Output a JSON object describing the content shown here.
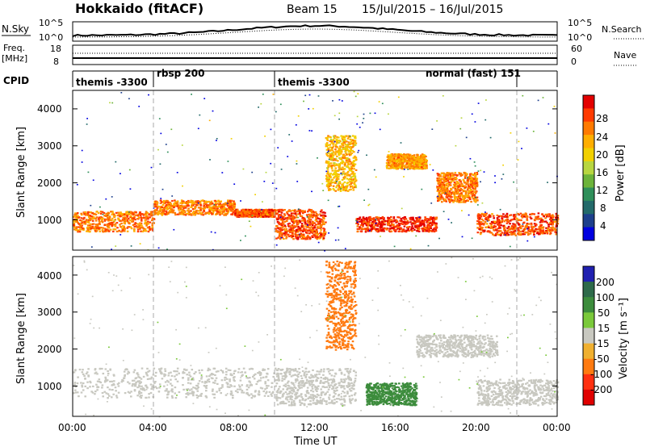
{
  "header": {
    "radar": "Hokkaido (fitACF)",
    "beam": "Beam 15",
    "date_range": "15/Jul/2015 – 16/Jul/2015"
  },
  "nsky_panel": {
    "left_label": "N.Sky",
    "left_ticks": [
      "10^5",
      "10^0"
    ],
    "right_ticks": [
      "10^5",
      "10^0"
    ],
    "right_label": "N.Search"
  },
  "freq_panel": {
    "left_label_1": "Freq.",
    "left_label_2": "[MHz]",
    "left_ticks": [
      "18",
      "8"
    ],
    "right_ticks": [
      "60",
      "0"
    ],
    "right_label": "Nave"
  },
  "cpid_panel": {
    "label": "CPID",
    "segments": [
      "themis -3300",
      "rbsp 200",
      "themis -3300",
      "normal (fast) 151"
    ]
  },
  "power_panel": {
    "ylabel": "Slant Range [km]",
    "yticks": [
      "4000",
      "3000",
      "2000",
      "1000"
    ],
    "colorbar_label": "Power [dB]",
    "colorbar_ticks": [
      "28",
      "24",
      "20",
      "16",
      "12",
      "8",
      "4"
    ],
    "colorbar_colors": [
      "#e30000",
      "#ff3a00",
      "#ff7a00",
      "#ffae00",
      "#f2d000",
      "#b8d640",
      "#6cb33a",
      "#2f8f5a",
      "#236a6a",
      "#1d3f8c",
      "#0000e0"
    ]
  },
  "velocity_panel": {
    "ylabel": "Slant Range [km]",
    "yticks": [
      "4000",
      "3000",
      "2000",
      "1000"
    ],
    "colorbar_label": "Velocity [m s⁻¹]",
    "colorbar_ticks": [
      "200",
      "100",
      "50",
      "15",
      "-15",
      "-50",
      "-100",
      "-200"
    ],
    "colorbar_colors": [
      "#2020b0",
      "#2e6a4a",
      "#3c8c3c",
      "#7ac93a",
      "#c8c8c0",
      "#f0b030",
      "#ff7a10",
      "#ff3010",
      "#e00000"
    ]
  },
  "xaxis": {
    "ticks": [
      "00:00",
      "04:00",
      "08:00",
      "12:00",
      "16:00",
      "20:00",
      "00:00"
    ],
    "label": "Time UT"
  },
  "chart_data": {
    "type": "heatmap",
    "x_range_hours": [
      0,
      24
    ],
    "y_range_km": [
      180,
      4500
    ],
    "cpid_boundaries_hours": [
      4.0,
      10.0,
      22.0
    ],
    "power_features": [
      {
        "t": [
          0.0,
          4.0
        ],
        "r": [
          700,
          1250
        ],
        "db": 24
      },
      {
        "t": [
          4.0,
          8.0
        ],
        "r": [
          1150,
          1550
        ],
        "db": 24
      },
      {
        "t": [
          8.0,
          10.0
        ],
        "r": [
          1100,
          1300
        ],
        "db": 26
      },
      {
        "t": [
          10.0,
          12.5
        ],
        "r": [
          500,
          1300
        ],
        "db": 26
      },
      {
        "t": [
          12.5,
          14.0
        ],
        "r": [
          1800,
          3300
        ],
        "db": 20
      },
      {
        "t": [
          14.0,
          18.0
        ],
        "r": [
          700,
          1100
        ],
        "db": 28
      },
      {
        "t": [
          15.5,
          17.5
        ],
        "r": [
          2400,
          2800
        ],
        "db": 22
      },
      {
        "t": [
          18.0,
          20.0
        ],
        "r": [
          1500,
          2300
        ],
        "db": 24
      },
      {
        "t": [
          20.0,
          24.0
        ],
        "r": [
          600,
          1200
        ],
        "db": 26
      }
    ],
    "velocity_features": [
      {
        "t": [
          0.0,
          10.0
        ],
        "r": [
          700,
          1500
        ],
        "v": 0
      },
      {
        "t": [
          10.0,
          14.0
        ],
        "r": [
          500,
          1500
        ],
        "v": 0
      },
      {
        "t": [
          12.5,
          14.0
        ],
        "r": [
          2000,
          4400
        ],
        "v": -50
      },
      {
        "t": [
          14.5,
          17.0
        ],
        "r": [
          500,
          1100
        ],
        "v": 40
      },
      {
        "t": [
          17.0,
          21.0
        ],
        "r": [
          1800,
          2400
        ],
        "v": 0
      },
      {
        "t": [
          20.0,
          24.0
        ],
        "r": [
          500,
          1200
        ],
        "v": 0
      }
    ]
  }
}
